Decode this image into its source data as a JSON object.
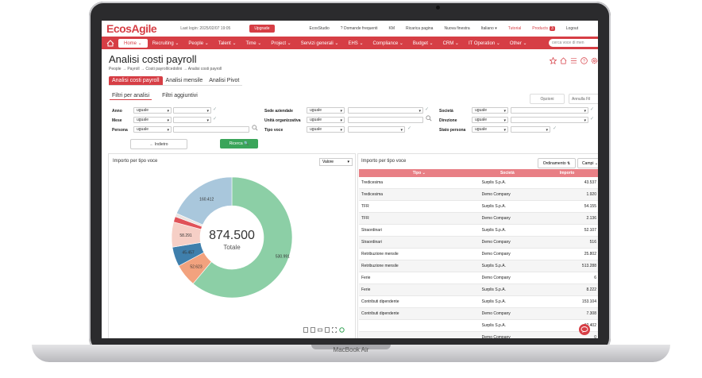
{
  "device": {
    "brand": "MacBook Air"
  },
  "topbar": {
    "logo": "EcosAgile",
    "last_login": "Last login: 2025/02/07 19:05",
    "upgrade": "Upgrade",
    "links": [
      {
        "label": "EcosStudio"
      },
      {
        "label": "? Domande frequenti"
      },
      {
        "label": "KM"
      },
      {
        "label": "Ricarica pagina"
      },
      {
        "label": "Nuova finestra"
      },
      {
        "label": "Italiano ▾"
      },
      {
        "label": "Tutorial"
      }
    ],
    "products_label": "Products",
    "products_badge": "3",
    "logout": "Logout"
  },
  "navbar": {
    "items": [
      "Home ⌄",
      "Recruiting ⌄",
      "People ⌄",
      "Talent ⌄",
      "Time ⌄",
      "Project ⌄",
      "Servizi generali ⌄",
      "EHS ⌄",
      "Compliance ⌄",
      "Budget ⌄",
      "CRM ⌄",
      "IT Operation ⌄",
      "Other ⌄"
    ],
    "search_placeholder": "cerca voce di men"
  },
  "page": {
    "title": "Analisi costi payroll",
    "breadcrumb": "People → Payroll → Costi payroll/cedolini → Analisi costi payroll"
  },
  "tabs": [
    "Analisi costi payroll",
    "Analisi mensile",
    "Analisi Pivot"
  ],
  "subtabs": [
    "Filtri per analisi",
    "Filtri aggiuntivi"
  ],
  "buttons": {
    "opzioni": "Opzioni",
    "annulla": "Annulla Fil",
    "indietro": "← Indietro",
    "ricerca": "Ricerca 🔍"
  },
  "filters": {
    "col1": [
      {
        "label": "Anno",
        "op": "uguale"
      },
      {
        "label": "Mese",
        "op": "uguale"
      },
      {
        "label": "Persona",
        "op": "uguale"
      }
    ],
    "col2": [
      {
        "label": "Sede aziendale",
        "op": "uguale"
      },
      {
        "label": "Unità organizzativa",
        "op": "uguale"
      },
      {
        "label": "Tipo voce",
        "op": "uguale"
      }
    ],
    "col3": [
      {
        "label": "Società",
        "op": "uguale"
      },
      {
        "label": "Direzione",
        "op": "uguale"
      },
      {
        "label": "Stato persona",
        "op": "uguale"
      }
    ]
  },
  "left_panel": {
    "title": "Importo per tipo voce",
    "selector": "Valore",
    "total": "874.500",
    "total_label": "Totale",
    "slice_labels": [
      "530.991",
      "52.623",
      "45.457",
      "58.291",
      "160.412"
    ]
  },
  "right_panel": {
    "title": "Importo per tipo voce",
    "ordinamento": "Ordinamento ⇅",
    "campi": "Campi ⌄",
    "columns": [
      "Tipo ⌄",
      "Società",
      "Importo"
    ],
    "rows": [
      [
        "Tredicesima",
        "Surplis S.p.A.",
        "43.537"
      ],
      [
        "Tredicesima",
        "Demo Company",
        "1.920"
      ],
      [
        "TFR",
        "Surplis S.p.A.",
        "54.155"
      ],
      [
        "TFR",
        "Demo Company",
        "2.136"
      ],
      [
        "Straordinari",
        "Surplis S.p.A.",
        "52.107"
      ],
      [
        "Straordinari",
        "Demo Company",
        "516"
      ],
      [
        "Retribuzione mensile",
        "Demo Company",
        "25.802"
      ],
      [
        "Retribuzione mensile",
        "Surplis S.p.A.",
        "513.288"
      ],
      [
        "Ferie",
        "Demo Company",
        "6"
      ],
      [
        "Ferie",
        "Surplis S.p.A.",
        "8.222"
      ],
      [
        "Contributi dipendente",
        "Surplis S.p.A.",
        "153.104"
      ],
      [
        "Contributi dipendente",
        "Demo Company",
        "7.308"
      ],
      [
        "",
        "Surplis S.p.A.",
        "12.402"
      ],
      [
        "",
        "Demo Company",
        "0"
      ]
    ]
  },
  "chart_data": {
    "type": "pie",
    "title": "Importo per tipo voce",
    "values": [
      530.991,
      52.623,
      45.457,
      58.291,
      13.0,
      8.0,
      160.412
    ],
    "slice_labels": [
      "530.991",
      "52.623",
      "45.457",
      "58.291",
      "",
      "",
      "160.412"
    ],
    "colors": [
      "#8ccfa6",
      "#f2a27e",
      "#3f7fac",
      "#f6cfc6",
      "#e05258",
      "#eae4e2",
      "#a9c7dc"
    ],
    "center_value": "874.500",
    "center_label": "Totale"
  },
  "colors": {
    "brand": "#d63e45",
    "green": "#3aa55a",
    "header_pink": "#e87f85"
  }
}
